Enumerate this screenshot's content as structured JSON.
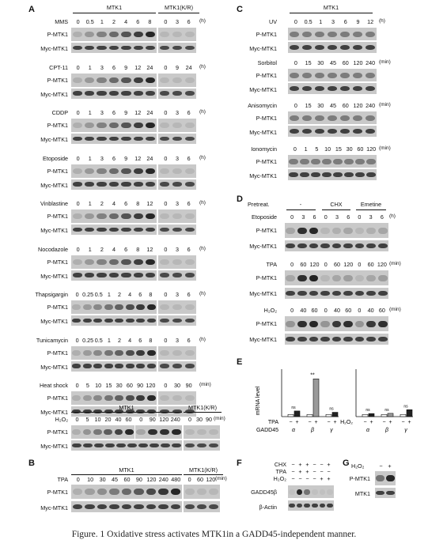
{
  "caption": "Figure. 1 Oxidative stress activates MTK1in a GADD45-independent manner.",
  "panel_letters": [
    "A",
    "B",
    "C",
    "D",
    "E",
    "F",
    "G"
  ],
  "row_labels": {
    "p": "P-MTK1",
    "m": "Myc-MTK1",
    "mtk1": "MTK1",
    "gadd45b": "GADD45β",
    "actin": "β-Actin"
  },
  "headers": {
    "mtk1": "MTK1",
    "mtk1kr": "MTK1(K/R)",
    "cntr_mtk1": "MTK1"
  },
  "unit_h": "(h)",
  "unit_min": "(min)",
  "panelA": [
    {
      "treatment": "MMS",
      "ticks": [
        "0",
        "0.5",
        "1",
        "2",
        "4",
        "6",
        "8"
      ],
      "kr_ticks": [
        "0",
        "3",
        "6"
      ],
      "unit": "(h)"
    },
    {
      "treatment": "CPT-11",
      "ticks": [
        "0",
        "1",
        "3",
        "6",
        "9",
        "12",
        "24"
      ],
      "kr_ticks": [
        "0",
        "9",
        "24"
      ],
      "unit": "(h)"
    },
    {
      "treatment": "CDDP",
      "ticks": [
        "0",
        "1",
        "3",
        "6",
        "9",
        "12",
        "24"
      ],
      "kr_ticks": [
        "0",
        "3",
        "6"
      ],
      "unit": "(h)"
    },
    {
      "treatment": "Etoposide",
      "ticks": [
        "0",
        "1",
        "3",
        "6",
        "9",
        "12",
        "24"
      ],
      "kr_ticks": [
        "0",
        "3",
        "6"
      ],
      "unit": "(h)"
    },
    {
      "treatment": "Vinblastine",
      "ticks": [
        "0",
        "1",
        "2",
        "4",
        "6",
        "8",
        "12"
      ],
      "kr_ticks": [
        "0",
        "3",
        "6"
      ],
      "unit": "(h)"
    },
    {
      "treatment": "Nocodazole",
      "ticks": [
        "0",
        "1",
        "2",
        "4",
        "6",
        "8",
        "12"
      ],
      "kr_ticks": [
        "0",
        "3",
        "6"
      ],
      "unit": "(h)"
    },
    {
      "treatment": "Thapsigargin",
      "ticks": [
        "0",
        "0.25",
        "0.5",
        "1",
        "2",
        "4",
        "6",
        "8"
      ],
      "kr_ticks": [
        "0",
        "3",
        "6"
      ],
      "unit": "(h)"
    },
    {
      "treatment": "Tunicamycin",
      "ticks": [
        "0",
        "0.25",
        "0.5",
        "1",
        "2",
        "4",
        "6",
        "8"
      ],
      "kr_ticks": [
        "0",
        "3",
        "6"
      ],
      "unit": "(h)"
    },
    {
      "treatment": "Heat shock",
      "ticks": [
        "0",
        "5",
        "10",
        "15",
        "30",
        "60",
        "90",
        "120"
      ],
      "kr_ticks": [
        "0",
        "30",
        "90"
      ],
      "unit": "(min)"
    }
  ],
  "panelA_h2o2": {
    "treatment": "H₂O₂",
    "ticks": [
      "0",
      "5",
      "10",
      "20",
      "40",
      "60"
    ],
    "ticks2": [
      "0",
      "90",
      "120",
      "240"
    ],
    "kr_ticks": [
      "0",
      "30",
      "90"
    ],
    "unit": "(min)"
  },
  "panelB": {
    "treatment": "TPA",
    "ticks": [
      "0",
      "10",
      "30",
      "45",
      "60",
      "90",
      "120",
      "240",
      "480"
    ],
    "kr_ticks": [
      "0",
      "60",
      "120"
    ],
    "unit": "(min)"
  },
  "panelC": [
    {
      "treatment": "UV",
      "ticks": [
        "0",
        "0.5",
        "1",
        "3",
        "6",
        "9",
        "12"
      ],
      "unit": "(h)"
    },
    {
      "treatment": "Sorbitol",
      "ticks": [
        "0",
        "15",
        "30",
        "45",
        "60",
        "120",
        "240"
      ],
      "unit": "(min)"
    },
    {
      "treatment": "Anisomycin",
      "ticks": [
        "0",
        "15",
        "30",
        "45",
        "60",
        "120",
        "240"
      ],
      "unit": "(min)"
    },
    {
      "treatment": "Ionomycin",
      "ticks": [
        "0",
        "1",
        "5",
        "10",
        "15",
        "30",
        "60",
        "120"
      ],
      "unit": "(min)"
    }
  ],
  "panelD": {
    "pretreat_label": "Pretreat.",
    "groups": [
      "-",
      "CHX",
      "Emetine"
    ],
    "rows": [
      {
        "treatment": "Etoposide",
        "ticks": [
          "0",
          "3",
          "6",
          "0",
          "3",
          "6",
          "0",
          "3",
          "6"
        ],
        "unit": "(h)"
      },
      {
        "treatment": "TPA",
        "ticks": [
          "0",
          "60",
          "120",
          "0",
          "60",
          "120",
          "0",
          "60",
          "120"
        ],
        "unit": "(min)"
      },
      {
        "treatment": "H₂O₂",
        "ticks": [
          "0",
          "40",
          "60",
          "0",
          "40",
          "60",
          "0",
          "40",
          "60"
        ],
        "unit": "(min)"
      }
    ]
  },
  "panelE": {
    "ylabel": "mRNA level",
    "left_treatment": "TPA",
    "right_treatment": "H₂O₂",
    "gene_label": "GADD45",
    "genes": [
      "α",
      "β",
      "γ"
    ],
    "signs": [
      "−",
      "+",
      "−",
      "+",
      "−",
      "+"
    ],
    "stars": "**",
    "ns": "ns"
  },
  "panelF": {
    "rows": [
      "CHX",
      "TPA",
      "H₂O₂"
    ],
    "signs": [
      [
        "−",
        "+",
        "+",
        "−",
        "−",
        "+"
      ],
      [
        "−",
        "+",
        "+",
        "−",
        "−",
        "−"
      ],
      [
        "−",
        "−",
        "−",
        "−",
        "+",
        "+"
      ]
    ]
  },
  "panelG": {
    "treatment": "H₂O₂",
    "signs": [
      "−",
      "+"
    ]
  },
  "chart_data": [
    {
      "type": "bar",
      "title": "",
      "ylabel": "mRNA level",
      "xlabel": "GADD45",
      "categories": [
        "α −",
        "α +",
        "β −",
        "β +",
        "γ −",
        "γ +"
      ],
      "series": [
        {
          "name": "TPA",
          "values": [
            1.0,
            2.6,
            1.0,
            17.5,
            1.0,
            2.0
          ]
        }
      ],
      "annotations": [
        "ns",
        "**",
        "ns"
      ],
      "ylim": [
        0,
        22
      ]
    },
    {
      "type": "bar",
      "title": "",
      "ylabel": "",
      "xlabel": "GADD45",
      "categories": [
        "α −",
        "α +",
        "β −",
        "β +",
        "γ −",
        "γ +"
      ],
      "series": [
        {
          "name": "H₂O₂",
          "values": [
            1.0,
            1.4,
            1.0,
            1.5,
            1.0,
            3.2
          ]
        }
      ],
      "annotations": [
        "ns",
        "ns",
        "ns"
      ],
      "ylim": [
        0,
        22
      ]
    }
  ]
}
